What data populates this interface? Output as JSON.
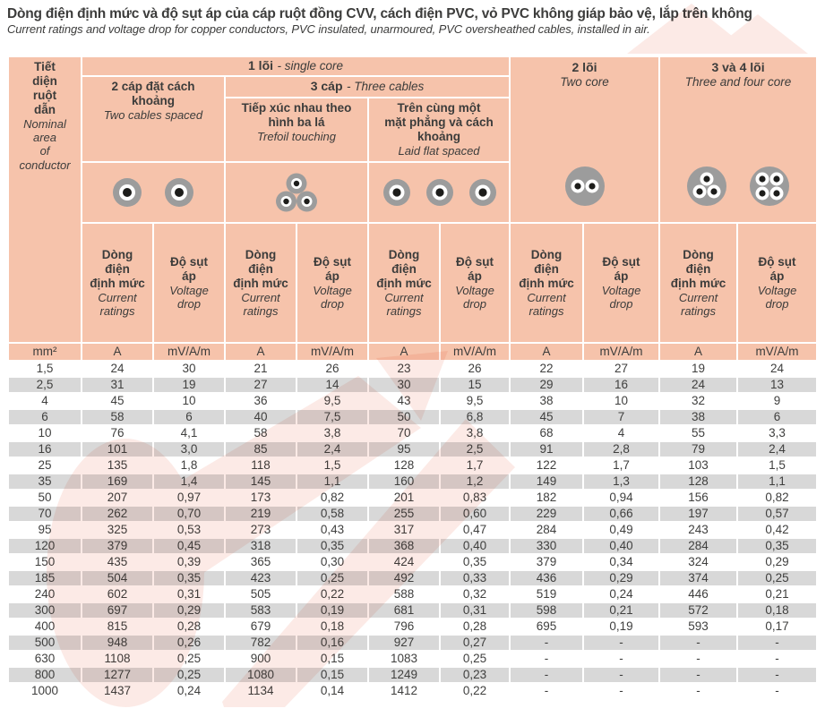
{
  "document": {
    "title_vi": "Dòng điện định mức và độ sụt áp của cáp ruột đồng CVV, cách điện PVC, vỏ PVC không giáp bảo vệ, lắp trên không",
    "title_en": "Current ratings and voltage drop for copper conductors, PVC insulated, unarmoured, PVC oversheathed cables, installed in air."
  },
  "header": {
    "corner_vi": "Tiết\ndiện\nruột\ndẫn",
    "corner_en": "Nominal\narea\nof\nconductor",
    "single_core_b": "1 lõi",
    "single_core_i": "- single core",
    "two_core_b": "2 lõi",
    "two_core_i": "Two core",
    "three_four_core_b": "3 và 4 lõi",
    "three_four_core_i": "Three and four core",
    "two_spaced_vi": "2 cáp đặt cách\nkhoảng",
    "two_spaced_en": "Two cables spaced",
    "three_cables_b": "3 cáp",
    "three_cables_i": "- Three cables",
    "trefoil_vi": "Tiếp xúc nhau theo\nhình ba lá",
    "trefoil_en": "Trefoil touching",
    "flat_vi": "Trên cùng một\nmặt phẳng và cách\nkhoảng",
    "flat_en": "Laid flat spaced",
    "current_vi": "Dòng\nđiện\nđịnh mức",
    "current_en": "Current\nratings",
    "vdrop_vi": "Độ sụt\náp",
    "vdrop_en": "Voltage\ndrop"
  },
  "units": {
    "size": "mm²",
    "current": "A",
    "vdrop": "mV/A/m"
  },
  "icons": [
    "two-cables-spaced-icon",
    "trefoil-touching-icon",
    "laid-flat-spaced-icon",
    "two-core-cable-icon",
    "three-core-cable-icon",
    "four-core-cable-icon"
  ],
  "colors": {
    "header_peach": "#f6c3ab",
    "stripe_gray": "#d8d8d8",
    "text_dark": "#3c3c3b",
    "icon_gray": "#9c9c9c",
    "icon_core_black": "#1d1d1b",
    "watermark_pink": "#f9d9d2"
  },
  "chart_data": {
    "type": "table",
    "title": "Current ratings and voltage drop — CVV copper cables, PVC insulated, unarmoured, installed in air",
    "columns": [
      "Nominal area of conductor (mm²)",
      "1 core, 2 cables spaced — Current ratings (A)",
      "1 core, 2 cables spaced — Voltage drop (mV/A/m)",
      "1 core, trefoil touching — Current ratings (A)",
      "1 core, trefoil touching — Voltage drop (mV/A/m)",
      "1 core, laid flat spaced — Current ratings (A)",
      "1 core, laid flat spaced — Voltage drop (mV/A/m)",
      "2 core — Current ratings (A)",
      "2 core — Voltage drop (mV/A/m)",
      "3 and 4 core — Current ratings (A)",
      "3 and 4 core — Voltage drop (mV/A/m)"
    ],
    "rows": [
      [
        "1,5",
        "24",
        "30",
        "21",
        "26",
        "23",
        "26",
        "22",
        "27",
        "19",
        "24"
      ],
      [
        "2,5",
        "31",
        "19",
        "27",
        "14",
        "30",
        "15",
        "29",
        "16",
        "24",
        "13"
      ],
      [
        "4",
        "45",
        "10",
        "36",
        "9,5",
        "43",
        "9,5",
        "38",
        "10",
        "32",
        "9"
      ],
      [
        "6",
        "58",
        "6",
        "40",
        "7,5",
        "50",
        "6,8",
        "45",
        "7",
        "38",
        "6"
      ],
      [
        "10",
        "76",
        "4,1",
        "58",
        "3,8",
        "70",
        "3,8",
        "68",
        "4",
        "55",
        "3,3"
      ],
      [
        "16",
        "101",
        "3,0",
        "85",
        "2,4",
        "95",
        "2,5",
        "91",
        "2,8",
        "79",
        "2,4"
      ],
      [
        "25",
        "135",
        "1,8",
        "118",
        "1,5",
        "128",
        "1,7",
        "122",
        "1,7",
        "103",
        "1,5"
      ],
      [
        "35",
        "169",
        "1,4",
        "145",
        "1,1",
        "160",
        "1,2",
        "149",
        "1,3",
        "128",
        "1,1"
      ],
      [
        "50",
        "207",
        "0,97",
        "173",
        "0,82",
        "201",
        "0,83",
        "182",
        "0,94",
        "156",
        "0,82"
      ],
      [
        "70",
        "262",
        "0,70",
        "219",
        "0,58",
        "255",
        "0,60",
        "229",
        "0,66",
        "197",
        "0,57"
      ],
      [
        "95",
        "325",
        "0,53",
        "273",
        "0,43",
        "317",
        "0,47",
        "284",
        "0,49",
        "243",
        "0,42"
      ],
      [
        "120",
        "379",
        "0,45",
        "318",
        "0,35",
        "368",
        "0,40",
        "330",
        "0,40",
        "284",
        "0,35"
      ],
      [
        "150",
        "435",
        "0,39",
        "365",
        "0,30",
        "424",
        "0,35",
        "379",
        "0,34",
        "324",
        "0,29"
      ],
      [
        "185",
        "504",
        "0,35",
        "423",
        "0,25",
        "492",
        "0,33",
        "436",
        "0,29",
        "374",
        "0,25"
      ],
      [
        "240",
        "602",
        "0,31",
        "505",
        "0,22",
        "588",
        "0,32",
        "519",
        "0,24",
        "446",
        "0,21"
      ],
      [
        "300",
        "697",
        "0,29",
        "583",
        "0,19",
        "681",
        "0,31",
        "598",
        "0,21",
        "572",
        "0,18"
      ],
      [
        "400",
        "815",
        "0,28",
        "679",
        "0,18",
        "796",
        "0,28",
        "695",
        "0,19",
        "593",
        "0,17"
      ],
      [
        "500",
        "948",
        "0,26",
        "782",
        "0,16",
        "927",
        "0,27",
        "-",
        "-",
        "-",
        "-"
      ],
      [
        "630",
        "1108",
        "0,25",
        "900",
        "0,15",
        "1083",
        "0,25",
        "-",
        "-",
        "-",
        "-"
      ],
      [
        "800",
        "1277",
        "0,25",
        "1080",
        "0,15",
        "1249",
        "0,23",
        "-",
        "-",
        "-",
        "-"
      ],
      [
        "1000",
        "1437",
        "0,24",
        "1134",
        "0,14",
        "1412",
        "0,22",
        "-",
        "-",
        "-",
        "-"
      ]
    ]
  }
}
